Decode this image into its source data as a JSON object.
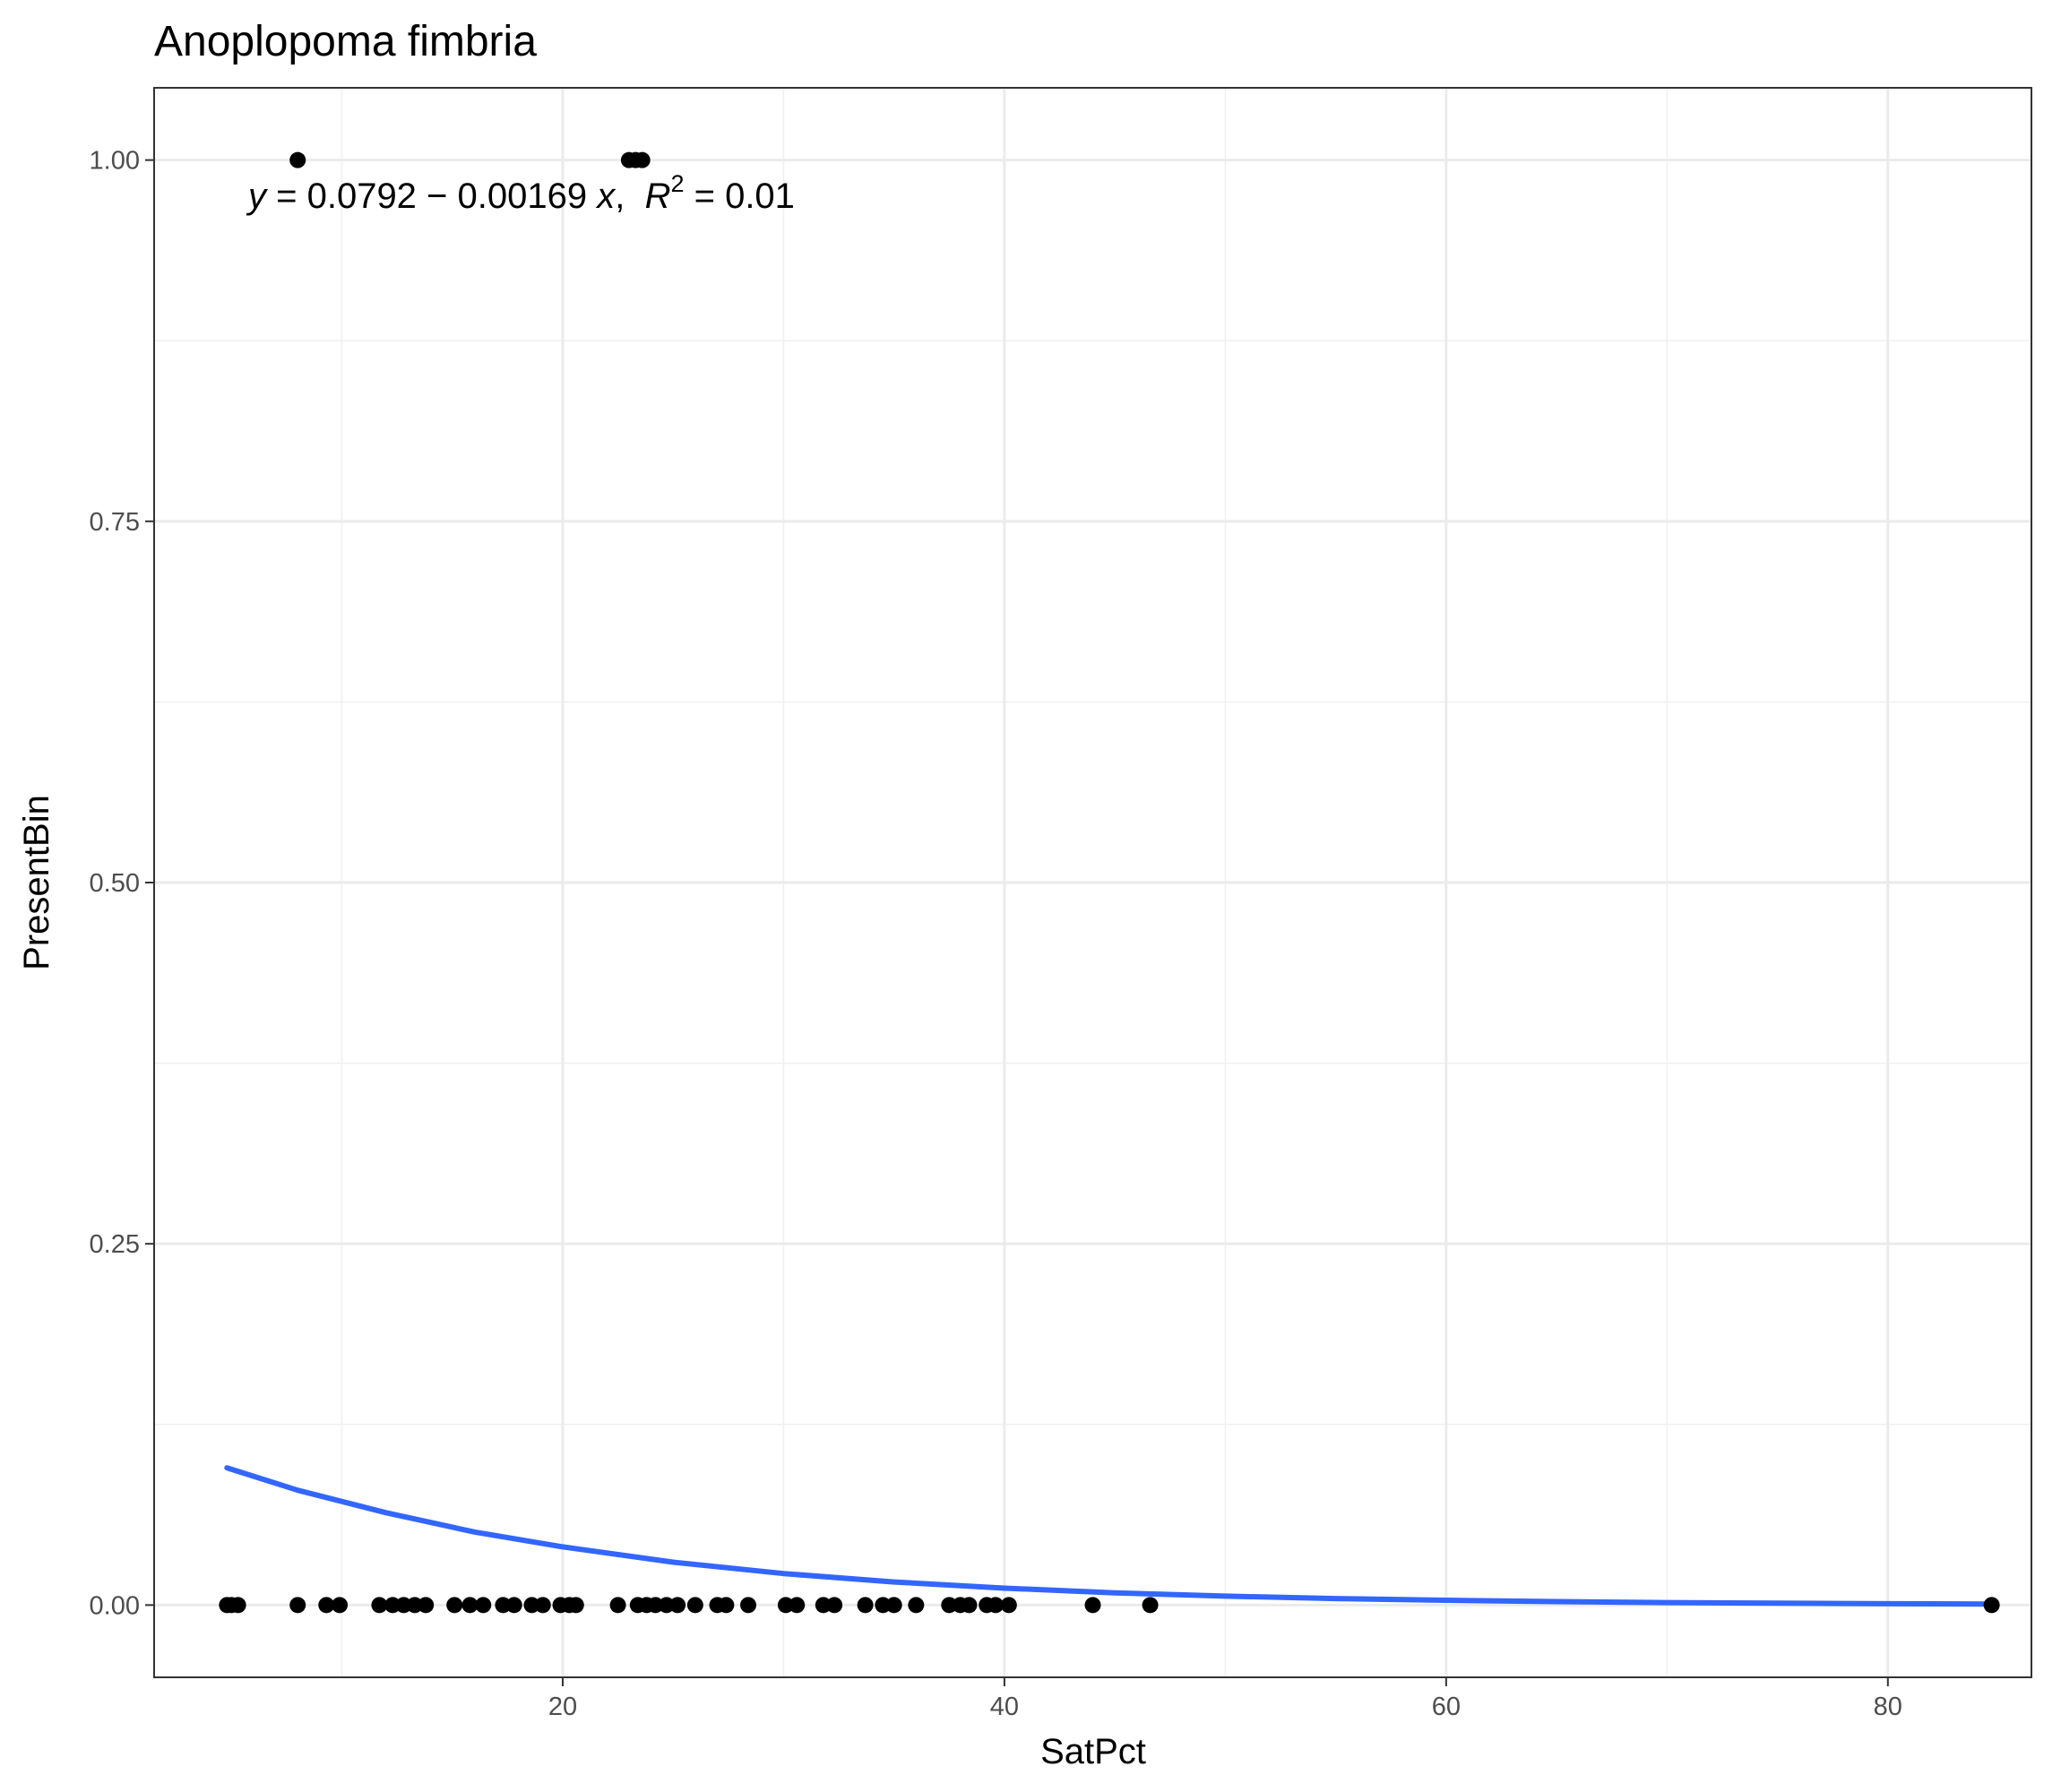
{
  "chart_data": {
    "type": "scatter",
    "title": "Anoplopoma fimbria",
    "xlabel": "SatPct",
    "ylabel": "PresentBin",
    "xlim": [
      1.5,
      86.5
    ],
    "ylim": [
      -0.05,
      1.05
    ],
    "x_ticks": [
      20,
      40,
      60,
      80
    ],
    "x_tick_labels": [
      "20",
      "40",
      "60",
      "80"
    ],
    "y_ticks": [
      0,
      0.25,
      0.5,
      0.75,
      1.0
    ],
    "y_tick_labels": [
      "0.00",
      "0.25",
      "0.50",
      "0.75",
      "1.00"
    ],
    "grid": true,
    "point_color": "#000000",
    "curve_color": "#3366FF",
    "points": [
      {
        "x": 4.8,
        "y": 0
      },
      {
        "x": 5.0,
        "y": 0
      },
      {
        "x": 5.3,
        "y": 0
      },
      {
        "x": 8.0,
        "y": 0
      },
      {
        "x": 8.0,
        "y": 1
      },
      {
        "x": 9.3,
        "y": 0
      },
      {
        "x": 9.9,
        "y": 0
      },
      {
        "x": 11.7,
        "y": 0
      },
      {
        "x": 12.3,
        "y": 0
      },
      {
        "x": 12.8,
        "y": 0
      },
      {
        "x": 13.3,
        "y": 0
      },
      {
        "x": 13.8,
        "y": 0
      },
      {
        "x": 15.1,
        "y": 0
      },
      {
        "x": 15.8,
        "y": 0
      },
      {
        "x": 16.4,
        "y": 0
      },
      {
        "x": 17.3,
        "y": 0
      },
      {
        "x": 17.8,
        "y": 0
      },
      {
        "x": 18.6,
        "y": 0
      },
      {
        "x": 19.1,
        "y": 0
      },
      {
        "x": 19.9,
        "y": 0
      },
      {
        "x": 20.3,
        "y": 0
      },
      {
        "x": 20.6,
        "y": 0
      },
      {
        "x": 22.5,
        "y": 0
      },
      {
        "x": 23.0,
        "y": 1
      },
      {
        "x": 23.3,
        "y": 1
      },
      {
        "x": 23.6,
        "y": 1
      },
      {
        "x": 23.4,
        "y": 0
      },
      {
        "x": 23.8,
        "y": 0
      },
      {
        "x": 24.2,
        "y": 0
      },
      {
        "x": 24.7,
        "y": 0
      },
      {
        "x": 25.2,
        "y": 0
      },
      {
        "x": 26.0,
        "y": 0
      },
      {
        "x": 27.0,
        "y": 0
      },
      {
        "x": 27.4,
        "y": 0
      },
      {
        "x": 28.4,
        "y": 0
      },
      {
        "x": 30.1,
        "y": 0
      },
      {
        "x": 30.6,
        "y": 0
      },
      {
        "x": 31.8,
        "y": 0
      },
      {
        "x": 32.3,
        "y": 0
      },
      {
        "x": 33.7,
        "y": 0
      },
      {
        "x": 34.5,
        "y": 0
      },
      {
        "x": 35.0,
        "y": 0
      },
      {
        "x": 36.0,
        "y": 0
      },
      {
        "x": 37.5,
        "y": 0
      },
      {
        "x": 38.0,
        "y": 0
      },
      {
        "x": 38.4,
        "y": 0
      },
      {
        "x": 39.2,
        "y": 0
      },
      {
        "x": 39.6,
        "y": 0
      },
      {
        "x": 40.2,
        "y": 0
      },
      {
        "x": 44.0,
        "y": 0
      },
      {
        "x": 46.6,
        "y": 0
      },
      {
        "x": 84.7,
        "y": 0
      }
    ],
    "fit_curve": {
      "x": [
        4.8,
        8,
        12,
        16,
        20,
        25,
        30,
        35,
        40,
        45,
        50,
        55,
        60,
        65,
        70,
        75,
        80,
        84.7
      ],
      "y": [
        0.095,
        0.0795,
        0.0639,
        0.0506,
        0.0403,
        0.0297,
        0.0218,
        0.016,
        0.0117,
        0.0085,
        0.0062,
        0.0045,
        0.0033,
        0.0024,
        0.0017,
        0.0013,
        0.0009,
        0.0007
      ]
    },
    "annotation": {
      "text_y": "y",
      "text_eq1": " = 0.0792 − 0.00169 ",
      "text_x": "x",
      "text_comma": ",  ",
      "text_R": "R",
      "text_sup": "2",
      "text_eq2": " = 0.01"
    }
  }
}
